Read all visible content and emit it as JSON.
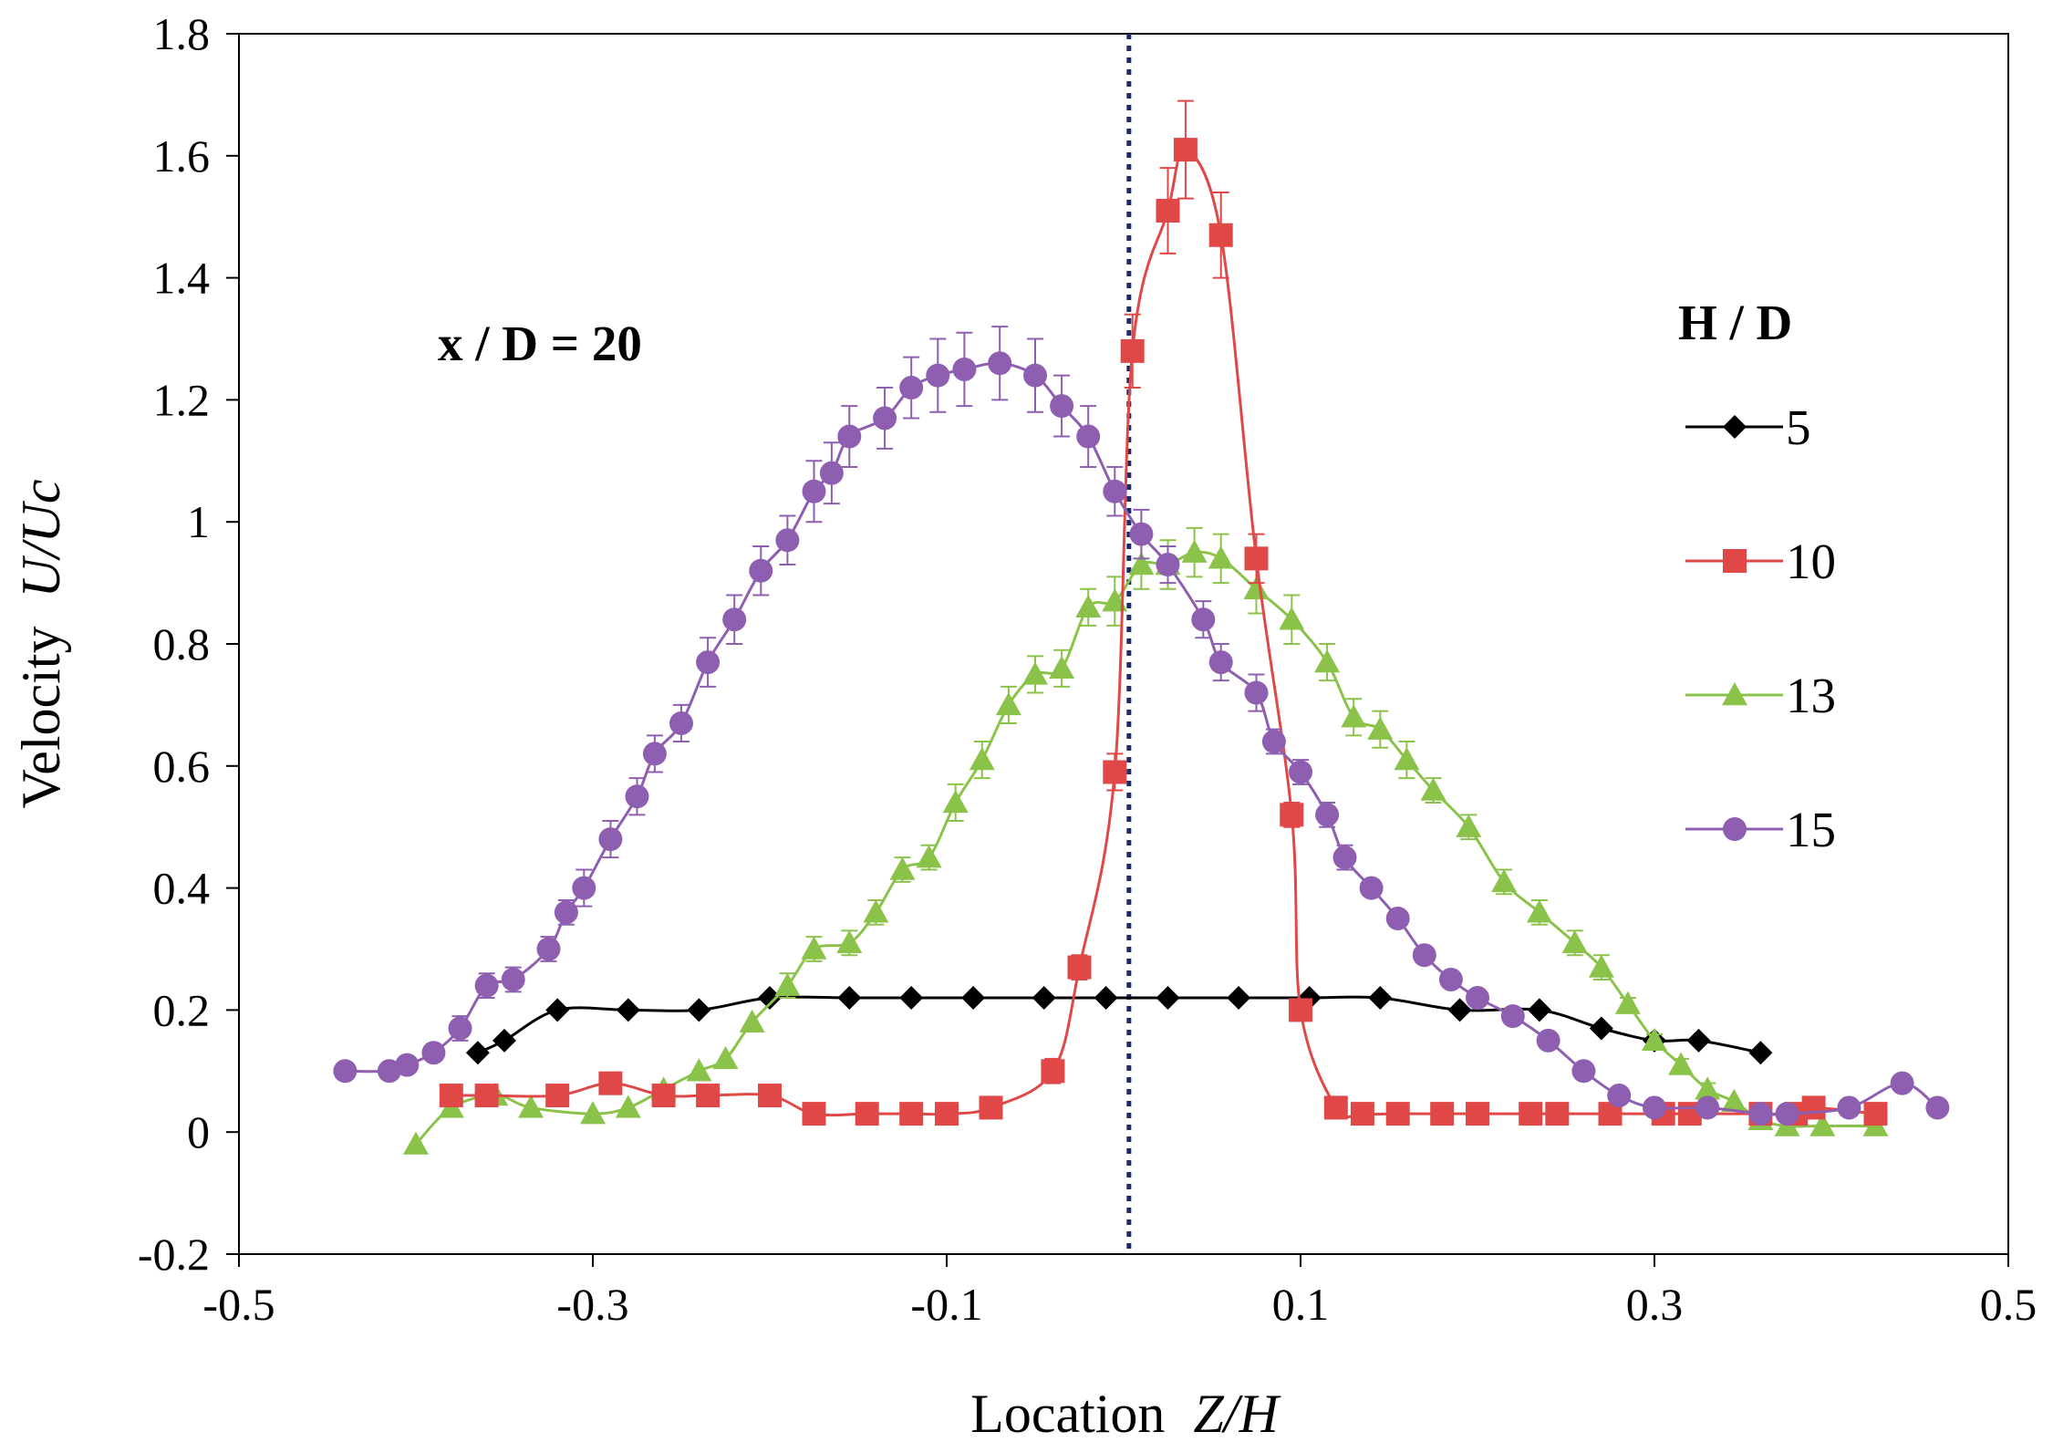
{
  "chart_data": {
    "type": "line",
    "title": "",
    "xlabel": "Location",
    "xlabel_var": "Z/H",
    "ylabel": "Velocity",
    "ylabel_var": "U/Uc",
    "xlim": [
      -0.5,
      0.5
    ],
    "ylim": [
      -0.2,
      1.8
    ],
    "xticks": [
      -0.5,
      -0.3,
      -0.1,
      0.1,
      0.3,
      0.5
    ],
    "xtick_labels": [
      "-0.5",
      "-0.3",
      "-0.1",
      "0.1",
      "0.3",
      "0.5"
    ],
    "yticks": [
      -0.2,
      0,
      0.2,
      0.4,
      0.6,
      0.8,
      1,
      1.2,
      1.4,
      1.6,
      1.8
    ],
    "ytick_labels": [
      "-0.2",
      "0",
      "0.2",
      "0.4",
      "0.6",
      "0.8",
      "1",
      "1.2",
      "1.4",
      "1.6",
      "1.8"
    ],
    "grid": false,
    "annotation": "x / D = 20",
    "reference_line_x": 0.003,
    "legend": {
      "title": "H / D",
      "position": "right"
    },
    "series": [
      {
        "name": "5",
        "color": "#000000",
        "marker": "diamond",
        "error_bars": false,
        "x": [
          -0.365,
          -0.35,
          -0.32,
          -0.28,
          -0.24,
          -0.2,
          -0.155,
          -0.12,
          -0.085,
          -0.045,
          -0.01,
          0.025,
          0.065,
          0.105,
          0.145,
          0.19,
          0.235,
          0.27,
          0.3,
          0.325,
          0.36
        ],
        "y": [
          0.13,
          0.15,
          0.2,
          0.2,
          0.2,
          0.22,
          0.22,
          0.22,
          0.22,
          0.22,
          0.22,
          0.22,
          0.22,
          0.22,
          0.22,
          0.2,
          0.2,
          0.17,
          0.15,
          0.15,
          0.13
        ]
      },
      {
        "name": "10",
        "color": "#e04848",
        "marker": "square",
        "error_bars": true,
        "x": [
          -0.38,
          -0.36,
          -0.32,
          -0.29,
          -0.26,
          -0.235,
          -0.2,
          -0.175,
          -0.145,
          -0.12,
          -0.1,
          -0.075,
          -0.04,
          -0.025,
          -0.005,
          0.005,
          0.025,
          0.035,
          0.055,
          0.075,
          0.095,
          0.1,
          0.12,
          0.135,
          0.155,
          0.18,
          0.2,
          0.23,
          0.245,
          0.275,
          0.305,
          0.32,
          0.36,
          0.38,
          0.39,
          0.425
        ],
        "y": [
          0.06,
          0.06,
          0.06,
          0.08,
          0.06,
          0.06,
          0.06,
          0.03,
          0.03,
          0.03,
          0.03,
          0.04,
          0.1,
          0.27,
          0.59,
          1.28,
          1.51,
          1.61,
          1.47,
          0.94,
          0.52,
          0.2,
          0.04,
          0.03,
          0.03,
          0.03,
          0.03,
          0.03,
          0.03,
          0.03,
          0.03,
          0.03,
          0.03,
          0.03,
          0.04,
          0.03
        ],
        "errors": [
          0,
          0,
          0,
          0,
          0,
          0,
          0,
          0,
          0,
          0,
          0,
          0,
          0.02,
          0.02,
          0.03,
          0.06,
          0.07,
          0.08,
          0.07,
          0.04,
          0.02,
          0.01,
          0,
          0,
          0,
          0,
          0,
          0,
          0,
          0,
          0,
          0,
          0,
          0,
          0,
          0
        ]
      },
      {
        "name": "13",
        "color": "#8bc34a",
        "marker": "triangle",
        "error_bars": true,
        "x": [
          -0.4,
          -0.38,
          -0.355,
          -0.335,
          -0.3,
          -0.28,
          -0.26,
          -0.24,
          -0.225,
          -0.21,
          -0.19,
          -0.175,
          -0.155,
          -0.14,
          -0.125,
          -0.11,
          -0.095,
          -0.08,
          -0.065,
          -0.05,
          -0.035,
          -0.02,
          -0.005,
          0.01,
          0.025,
          0.04,
          0.055,
          0.075,
          0.095,
          0.115,
          0.13,
          0.145,
          0.16,
          0.175,
          0.195,
          0.215,
          0.235,
          0.255,
          0.27,
          0.285,
          0.3,
          0.315,
          0.33,
          0.345,
          0.36,
          0.375,
          0.395,
          0.425
        ],
        "y": [
          -0.02,
          0.04,
          0.06,
          0.04,
          0.03,
          0.04,
          0.07,
          0.1,
          0.12,
          0.18,
          0.24,
          0.3,
          0.31,
          0.36,
          0.43,
          0.45,
          0.54,
          0.61,
          0.7,
          0.75,
          0.76,
          0.86,
          0.87,
          0.93,
          0.93,
          0.95,
          0.94,
          0.89,
          0.84,
          0.77,
          0.68,
          0.66,
          0.61,
          0.56,
          0.5,
          0.41,
          0.36,
          0.31,
          0.27,
          0.21,
          0.15,
          0.11,
          0.07,
          0.05,
          0.02,
          0.01,
          0.01,
          0.01
        ],
        "errors": [
          0,
          0,
          0,
          0,
          0,
          0,
          0,
          0,
          0,
          0,
          0.02,
          0.02,
          0.02,
          0.02,
          0.02,
          0.02,
          0.03,
          0.03,
          0.03,
          0.03,
          0.03,
          0.03,
          0.04,
          0.04,
          0.04,
          0.04,
          0.04,
          0.04,
          0.04,
          0.03,
          0.03,
          0.03,
          0.03,
          0.02,
          0.02,
          0.02,
          0.02,
          0.02,
          0.02,
          0.01,
          0.01,
          0.01,
          0.01,
          0,
          0,
          0,
          0,
          0
        ]
      },
      {
        "name": "15",
        "color": "#8e5fb0",
        "marker": "circle",
        "error_bars": true,
        "x": [
          -0.44,
          -0.415,
          -0.405,
          -0.39,
          -0.375,
          -0.36,
          -0.345,
          -0.325,
          -0.315,
          -0.305,
          -0.29,
          -0.275,
          -0.265,
          -0.25,
          -0.235,
          -0.22,
          -0.205,
          -0.19,
          -0.175,
          -0.165,
          -0.155,
          -0.135,
          -0.12,
          -0.105,
          -0.09,
          -0.07,
          -0.05,
          -0.035,
          -0.02,
          -0.005,
          0.01,
          0.025,
          0.045,
          0.055,
          0.075,
          0.085,
          0.1,
          0.115,
          0.125,
          0.14,
          0.155,
          0.17,
          0.185,
          0.2,
          0.22,
          0.24,
          0.26,
          0.28,
          0.3,
          0.33,
          0.36,
          0.375,
          0.41,
          0.44,
          0.46
        ],
        "y": [
          0.1,
          0.1,
          0.11,
          0.13,
          0.17,
          0.24,
          0.25,
          0.3,
          0.36,
          0.4,
          0.48,
          0.55,
          0.62,
          0.67,
          0.77,
          0.84,
          0.92,
          0.97,
          1.05,
          1.08,
          1.14,
          1.17,
          1.22,
          1.24,
          1.25,
          1.26,
          1.24,
          1.19,
          1.14,
          1.05,
          0.98,
          0.93,
          0.84,
          0.77,
          0.72,
          0.64,
          0.59,
          0.52,
          0.45,
          0.4,
          0.35,
          0.29,
          0.25,
          0.22,
          0.19,
          0.15,
          0.1,
          0.06,
          0.04,
          0.04,
          0.03,
          0.03,
          0.04,
          0.08,
          0.04
        ],
        "errors": [
          0,
          0,
          0,
          0,
          0.02,
          0.02,
          0.02,
          0.02,
          0.02,
          0.03,
          0.03,
          0.03,
          0.03,
          0.03,
          0.04,
          0.04,
          0.04,
          0.04,
          0.05,
          0.05,
          0.05,
          0.05,
          0.05,
          0.06,
          0.06,
          0.06,
          0.06,
          0.05,
          0.05,
          0.04,
          0.04,
          0.03,
          0.03,
          0.03,
          0.03,
          0.02,
          0.02,
          0.02,
          0.02,
          0.01,
          0.01,
          0.01,
          0.01,
          0,
          0,
          0,
          0,
          0,
          0,
          0,
          0,
          0,
          0,
          0,
          0
        ]
      }
    ]
  }
}
